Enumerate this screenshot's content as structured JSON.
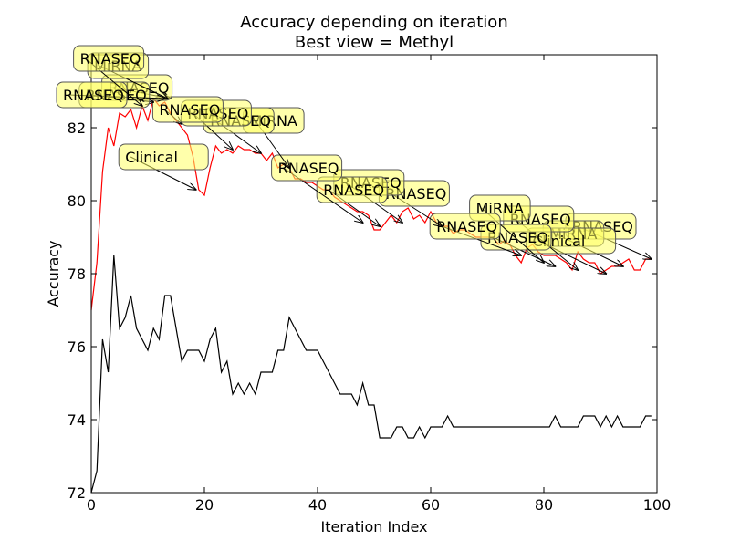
{
  "chart_data": {
    "type": "line",
    "title": "Accuracy depending on iteration",
    "subtitle": "Best view = Methyl",
    "xlabel": "Iteration Index",
    "ylabel": "Accuracy",
    "xlim": [
      0,
      100
    ],
    "ylim": [
      72,
      84
    ],
    "xticks": [
      "0",
      "20",
      "40",
      "60",
      "80",
      "100"
    ],
    "yticks": [
      "72",
      "74",
      "76",
      "78",
      "80",
      "82"
    ],
    "grid": false,
    "colors": {
      "upper": "#ff0000",
      "lower": "#000000",
      "callout_fill": "#ffff66",
      "callout_edge": "#555555"
    },
    "series": [
      {
        "x": [
          0,
          1,
          2,
          3,
          4,
          5,
          6,
          7,
          8,
          9,
          10,
          11,
          12,
          13,
          14,
          15,
          16,
          17,
          18,
          19,
          20,
          21,
          22,
          23,
          24,
          25,
          26,
          27,
          28,
          29,
          30,
          31,
          32,
          33,
          34,
          35,
          36,
          37,
          38,
          39,
          40,
          41,
          42,
          43,
          44,
          45,
          46,
          47,
          48,
          49,
          50,
          51,
          52,
          53,
          54,
          55,
          56,
          57,
          58,
          59,
          60,
          61,
          62,
          63,
          64,
          65,
          66,
          67,
          68,
          69,
          70,
          71,
          72,
          73,
          74,
          75,
          76,
          77,
          78,
          79,
          80,
          81,
          82,
          83,
          84,
          85,
          86,
          87,
          88,
          89,
          90,
          91,
          92,
          93,
          94,
          95,
          96,
          97,
          98,
          99
        ],
        "values": [
          77.0,
          78.3,
          80.8,
          82.0,
          81.5,
          82.4,
          82.3,
          82.5,
          82.0,
          82.6,
          82.2,
          82.8,
          82.6,
          82.7,
          82.4,
          82.2,
          82.0,
          81.8,
          81.2,
          80.3,
          80.15,
          80.9,
          81.5,
          81.3,
          81.4,
          81.3,
          81.5,
          81.4,
          81.4,
          81.3,
          81.3,
          81.1,
          81.3,
          80.9,
          81.0,
          80.9,
          80.6,
          80.6,
          80.5,
          80.5,
          80.4,
          80.3,
          80.3,
          80.1,
          80.0,
          79.9,
          79.8,
          79.7,
          79.7,
          79.6,
          79.2,
          79.2,
          79.4,
          79.6,
          79.4,
          79.7,
          79.8,
          79.5,
          79.6,
          79.4,
          79.7,
          79.4,
          79.3,
          79.3,
          79.1,
          79.2,
          79.2,
          79.1,
          79.0,
          79.0,
          79.0,
          79.0,
          78.8,
          78.9,
          78.8,
          78.5,
          78.3,
          78.7,
          78.8,
          78.6,
          78.5,
          78.5,
          78.5,
          78.4,
          78.3,
          78.1,
          78.6,
          78.4,
          78.3,
          78.3,
          78.0,
          78.1,
          78.2,
          78.2,
          78.3,
          78.4,
          78.1,
          78.1,
          78.4,
          78.4
        ]
      },
      {
        "x": [
          0,
          1,
          2,
          3,
          4,
          5,
          6,
          7,
          8,
          9,
          10,
          11,
          12,
          13,
          14,
          15,
          16,
          17,
          18,
          19,
          20,
          21,
          22,
          23,
          24,
          25,
          26,
          27,
          28,
          29,
          30,
          31,
          32,
          33,
          34,
          35,
          36,
          37,
          38,
          39,
          40,
          41,
          42,
          43,
          44,
          45,
          46,
          47,
          48,
          49,
          50,
          51,
          52,
          53,
          54,
          55,
          56,
          57,
          58,
          59,
          60,
          61,
          62,
          63,
          64,
          65,
          66,
          67,
          68,
          69,
          70,
          71,
          72,
          73,
          74,
          75,
          76,
          77,
          78,
          79,
          80,
          81,
          82,
          83,
          84,
          85,
          86,
          87,
          88,
          89,
          90,
          91,
          92,
          93,
          94,
          95,
          96,
          97,
          98,
          99
        ],
        "values": [
          72.0,
          72.6,
          76.2,
          75.3,
          78.5,
          76.5,
          76.8,
          77.4,
          76.5,
          76.2,
          75.9,
          76.5,
          76.2,
          77.4,
          77.4,
          76.5,
          75.6,
          75.9,
          75.9,
          75.9,
          75.6,
          76.2,
          76.5,
          75.3,
          75.6,
          74.7,
          75.0,
          74.7,
          75.0,
          74.7,
          75.3,
          75.3,
          75.3,
          75.9,
          75.9,
          76.8,
          76.5,
          76.2,
          75.9,
          75.9,
          75.9,
          75.6,
          75.3,
          75.0,
          74.7,
          74.7,
          74.7,
          74.4,
          75.0,
          74.4,
          74.4,
          73.5,
          73.5,
          73.5,
          73.8,
          73.8,
          73.5,
          73.5,
          73.8,
          73.5,
          73.8,
          73.8,
          73.8,
          74.1,
          73.8,
          73.8,
          73.8,
          73.8,
          73.8,
          73.8,
          73.8,
          73.8,
          73.8,
          73.8,
          73.8,
          73.8,
          73.8,
          73.8,
          73.8,
          73.8,
          73.8,
          73.8,
          74.1,
          73.8,
          73.8,
          73.8,
          73.8,
          74.1,
          74.1,
          74.1,
          73.8,
          74.1,
          73.8,
          74.1,
          73.8,
          73.8,
          73.8,
          73.8,
          74.1,
          74.1
        ]
      }
    ],
    "annotations": [
      {
        "text": "RNASEQ",
        "x": 99,
        "y": 78.4,
        "tx": 85,
        "ty": 79.3
      },
      {
        "text": "MiRNA",
        "x": 94,
        "y": 78.2,
        "tx": 81,
        "ty": 79.1
      },
      {
        "text": "Clinical",
        "x": 91,
        "y": 78.0,
        "tx": 78,
        "ty": 78.9
      },
      {
        "text": "RNASEQ",
        "x": 86,
        "y": 78.1,
        "tx": 74,
        "ty": 79.5
      },
      {
        "text": "RNASEQ",
        "x": 82,
        "y": 78.2,
        "tx": 70,
        "ty": 79.0
      },
      {
        "text": "MiRNA",
        "x": 80,
        "y": 78.3,
        "tx": 68,
        "ty": 79.8
      },
      {
        "text": "RNASEQ",
        "x": 76,
        "y": 78.5,
        "tx": 61,
        "ty": 79.3
      },
      {
        "text": "RNASEQ",
        "x": 62,
        "y": 79.3,
        "tx": 52,
        "ty": 80.2
      },
      {
        "text": "RNASEQ",
        "x": 55,
        "y": 79.4,
        "tx": 44,
        "ty": 80.5
      },
      {
        "text": "RNASEQ",
        "x": 51,
        "y": 79.3,
        "tx": 41,
        "ty": 80.3
      },
      {
        "text": "RNASEQ",
        "x": 48,
        "y": 79.4,
        "tx": 33,
        "ty": 80.9
      },
      {
        "text": "MiRNA",
        "x": 35,
        "y": 80.9,
        "tx": 28,
        "ty": 82.2
      },
      {
        "text": "RNASEQ",
        "x": 30,
        "y": 81.3,
        "tx": 21,
        "ty": 82.2
      },
      {
        "text": "RNASEQ",
        "x": 25,
        "y": 81.4,
        "tx": 17,
        "ty": 82.4
      },
      {
        "text": "RNASEQ",
        "x": 16,
        "y": 82.1,
        "tx": 12,
        "ty": 82.5
      },
      {
        "text": "Clinical",
        "x": 18.5,
        "y": 80.3,
        "tx": 6,
        "ty": 81.2
      },
      {
        "text": "RNASEQ",
        "x": 14,
        "y": 82.8,
        "tx": 3,
        "ty": 83.1
      },
      {
        "text": "RNASEQ",
        "x": 11,
        "y": 82.7,
        "tx": -1,
        "ty": 82.9
      },
      {
        "text": "MiRNA",
        "x": 13.5,
        "y": 82.8,
        "tx": 0.5,
        "ty": 83.7
      },
      {
        "text": "RNASEQ",
        "x": 13,
        "y": 82.8,
        "tx": -5,
        "ty": 82.9
      },
      {
        "text": "RNASEQ",
        "x": 9,
        "y": 82.6,
        "tx": -2,
        "ty": 83.9
      }
    ]
  }
}
